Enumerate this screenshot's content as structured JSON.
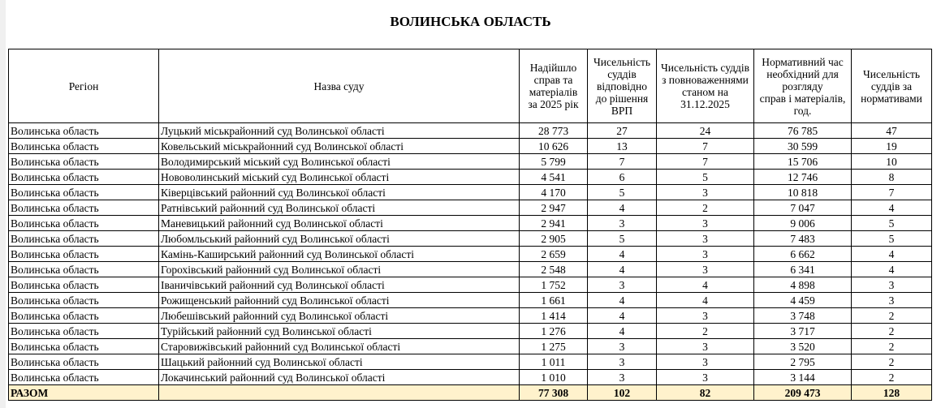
{
  "title": "ВОЛИНСЬКА ОБЛАСТЬ",
  "headers": [
    "Регіон",
    "Назва суду",
    "Надійшло\nсправ та\nматеріалів\nза 2025 рік",
    "Чисельність\nсуддів\nвідповідно\nдо рішення\nВРП",
    "Чисельність суддів\nз повноваженнями\nстаном на\n31.12.2025",
    "Нормативний час\nнеобхідний для\nрозгляду\nсправ і матеріалів,\nгод.",
    "Чисельність\nсуддів за\nнормативами"
  ],
  "rows": [
    [
      "Волинська область",
      "Луцький міськрайонний суд Волинської області",
      "28 773",
      "27",
      "24",
      "76 785",
      "47"
    ],
    [
      "Волинська область",
      "Ковельський міськрайонний суд Волинської області",
      "10 626",
      "13",
      "7",
      "30 599",
      "19"
    ],
    [
      "Волинська область",
      "Володимирський міський суд Волинської області",
      "5 799",
      "7",
      "7",
      "15 706",
      "10"
    ],
    [
      "Волинська область",
      "Нововолинський міський суд Волинської області",
      "4 541",
      "6",
      "5",
      "12 746",
      "8"
    ],
    [
      "Волинська область",
      "Ківерцівський районний суд Волинської області",
      "4 170",
      "5",
      "3",
      "10 818",
      "7"
    ],
    [
      "Волинська область",
      "Ратнівський районний суд Волинської області",
      "2 947",
      "4",
      "2",
      "7 047",
      "4"
    ],
    [
      "Волинська область",
      "Маневицький районний суд Волинської області",
      "2 941",
      "3",
      "3",
      "9 006",
      "5"
    ],
    [
      "Волинська область",
      "Любомльський районний суд Волинської області",
      "2 905",
      "5",
      "3",
      "7 483",
      "5"
    ],
    [
      "Волинська область",
      "Камінь-Каширський районний суд Волинської області",
      "2 659",
      "4",
      "3",
      "6 662",
      "4"
    ],
    [
      "Волинська область",
      "Горохівський районний суд Волинської області",
      "2 548",
      "4",
      "3",
      "6 341",
      "4"
    ],
    [
      "Волинська область",
      "Іваничівський районний суд Волинської області",
      "1 752",
      "3",
      "4",
      "4 898",
      "3"
    ],
    [
      "Волинська область",
      "Рожищенський районний суд Волинської області",
      "1 661",
      "4",
      "4",
      "4 459",
      "3"
    ],
    [
      "Волинська область",
      "Любешівський районний суд Волинської області",
      "1 414",
      "4",
      "3",
      "3 748",
      "2"
    ],
    [
      "Волинська область",
      "Турійський районний суд Волинської області",
      "1 276",
      "4",
      "2",
      "3 717",
      "2"
    ],
    [
      "Волинська область",
      "Старовижівський районний суд Волинської області",
      "1 275",
      "3",
      "3",
      "3 520",
      "2"
    ],
    [
      "Волинська область",
      "Шацький районний суд Волинської області",
      "1 011",
      "3",
      "3",
      "2 795",
      "2"
    ],
    [
      "Волинська область",
      "Локачинський районний суд Волинської області",
      "1 010",
      "3",
      "3",
      "3 144",
      "2"
    ]
  ],
  "total": [
    "РАЗОМ",
    "",
    "77 308",
    "102",
    "82",
    "209 473",
    "128"
  ],
  "colors": {
    "total_bg": "#fff2cc"
  }
}
